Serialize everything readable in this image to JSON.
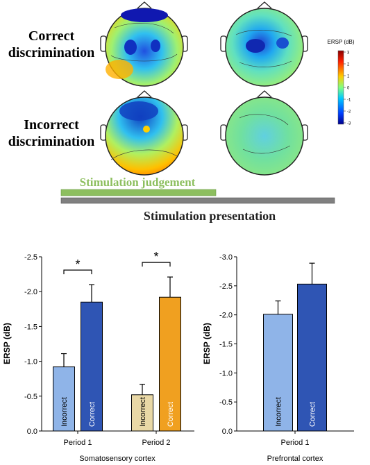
{
  "topomaps": {
    "rows": [
      {
        "label_line1": "Correct",
        "label_line2": "discrimination"
      },
      {
        "label_line1": "Incorrect",
        "label_line2": "discrimination"
      }
    ],
    "colorbar": {
      "title": "ERSP (dB)",
      "ticks": [
        "3",
        "2",
        "1",
        "0",
        "-1",
        "-2",
        "-3"
      ],
      "colors": [
        "#8b0000",
        "#ff2000",
        "#ffcc00",
        "#80ff80",
        "#00c8ff",
        "#0040ff",
        "#00008b"
      ]
    }
  },
  "timeline": {
    "judgement_label": "Stimulation judgement",
    "presentation_label": "Stimulation presentation",
    "judgement_color": "#8dbf5f",
    "presentation_color": "#808080"
  },
  "chart_data": [
    {
      "type": "bar",
      "xlabel": "Somatosensory cortex",
      "ylabel": "ERSP (dB)",
      "ylim": [
        0,
        -2.5
      ],
      "yticks": [
        "0.0",
        "-0.5",
        "-1.0",
        "-1.5",
        "-2.0",
        "-2.5"
      ],
      "categories": [
        "Period 1",
        "Period 2"
      ],
      "bars": [
        {
          "category": "Period 1",
          "label": "Incorrect",
          "value": -0.92,
          "error": 0.19,
          "color": "#8fb4e8"
        },
        {
          "category": "Period 1",
          "label": "Correct",
          "value": -1.85,
          "error": 0.25,
          "color": "#2f55b4"
        },
        {
          "category": "Period 2",
          "label": "Incorrect",
          "value": -0.52,
          "error": 0.15,
          "color": "#e9d8a6"
        },
        {
          "category": "Period 2",
          "label": "Correct",
          "value": -1.92,
          "error": 0.29,
          "color": "#f0a020"
        }
      ],
      "significance": [
        {
          "category": "Period 1",
          "marker": "*"
        },
        {
          "category": "Period 2",
          "marker": "*"
        }
      ]
    },
    {
      "type": "bar",
      "xlabel": "Prefrontal cortex",
      "ylabel": "ERSP (dB)",
      "ylim": [
        0,
        -3.0
      ],
      "yticks": [
        "0.0",
        "-0.5",
        "-1.0",
        "-1.5",
        "-2.0",
        "-2.5",
        "-3.0"
      ],
      "categories": [
        "Period 1"
      ],
      "bars": [
        {
          "category": "Period 1",
          "label": "Incorrect",
          "value": -2.01,
          "error": 0.23,
          "color": "#8fb4e8"
        },
        {
          "category": "Period 1",
          "label": "Correct",
          "value": -2.53,
          "error": 0.36,
          "color": "#2f55b4"
        }
      ]
    }
  ]
}
